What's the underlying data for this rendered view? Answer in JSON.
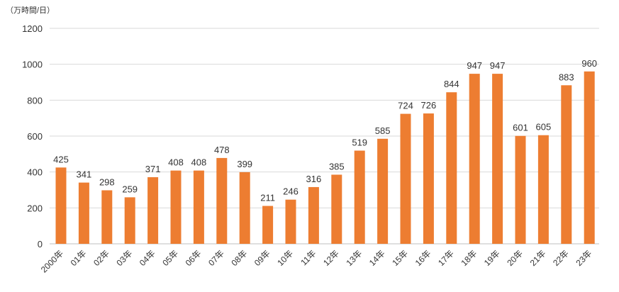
{
  "chart_data": {
    "type": "bar",
    "unit_label": "（万時間/日）",
    "categories": [
      "2000年",
      "01年",
      "02年",
      "03年",
      "04年",
      "05年",
      "06年",
      "07年",
      "08年",
      "09年",
      "10年",
      "11年",
      "12年",
      "13年",
      "14年",
      "15年",
      "16年",
      "17年",
      "18年",
      "19年",
      "20年",
      "21年",
      "22年",
      "23年"
    ],
    "values": [
      425,
      341,
      298,
      259,
      371,
      408,
      408,
      478,
      399,
      211,
      246,
      316,
      385,
      519,
      585,
      724,
      726,
      844,
      947,
      947,
      601,
      605,
      883,
      960
    ],
    "ylim": [
      0,
      1200
    ],
    "yticks": [
      0,
      200,
      400,
      600,
      800,
      1000,
      1200
    ],
    "grid": true,
    "bar_color": "#ed7d31"
  }
}
